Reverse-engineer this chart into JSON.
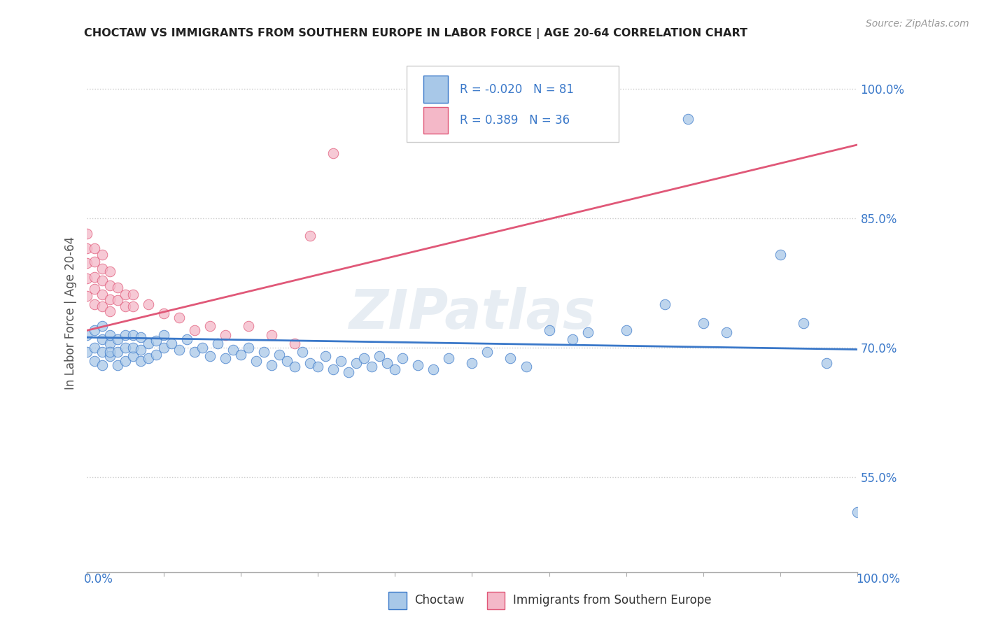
{
  "title": "CHOCTAW VS IMMIGRANTS FROM SOUTHERN EUROPE IN LABOR FORCE | AGE 20-64 CORRELATION CHART",
  "source": "Source: ZipAtlas.com",
  "ylabel": "In Labor Force | Age 20-64",
  "xlim": [
    0.0,
    1.0
  ],
  "ylim": [
    0.44,
    1.04
  ],
  "yticks": [
    0.55,
    0.7,
    0.85,
    1.0
  ],
  "ytick_labels": [
    "55.0%",
    "70.0%",
    "85.0%",
    "100.0%"
  ],
  "r1": -0.02,
  "n1": 81,
  "r2": 0.389,
  "n2": 36,
  "legend1_label": "Choctaw",
  "legend2_label": "Immigrants from Southern Europe",
  "color1": "#a8c8e8",
  "color2": "#f4b8c8",
  "line1_color": "#3a78c9",
  "line2_color": "#e05878",
  "watermark": "ZIPatlas",
  "blue_scatter_x": [
    0.0,
    0.0,
    0.01,
    0.01,
    0.01,
    0.02,
    0.02,
    0.02,
    0.02,
    0.03,
    0.03,
    0.03,
    0.03,
    0.04,
    0.04,
    0.04,
    0.05,
    0.05,
    0.05,
    0.06,
    0.06,
    0.06,
    0.07,
    0.07,
    0.07,
    0.08,
    0.08,
    0.09,
    0.09,
    0.1,
    0.1,
    0.11,
    0.12,
    0.13,
    0.14,
    0.15,
    0.16,
    0.17,
    0.18,
    0.19,
    0.2,
    0.21,
    0.22,
    0.23,
    0.24,
    0.25,
    0.26,
    0.27,
    0.28,
    0.29,
    0.3,
    0.31,
    0.32,
    0.33,
    0.34,
    0.35,
    0.36,
    0.37,
    0.38,
    0.39,
    0.4,
    0.41,
    0.43,
    0.45,
    0.47,
    0.5,
    0.52,
    0.55,
    0.57,
    0.6,
    0.63,
    0.65,
    0.7,
    0.75,
    0.78,
    0.8,
    0.83,
    0.9,
    0.93,
    0.96,
    1.0
  ],
  "blue_scatter_y": [
    0.695,
    0.715,
    0.685,
    0.7,
    0.72,
    0.68,
    0.695,
    0.71,
    0.725,
    0.69,
    0.705,
    0.695,
    0.715,
    0.68,
    0.695,
    0.71,
    0.685,
    0.7,
    0.715,
    0.69,
    0.7,
    0.715,
    0.685,
    0.698,
    0.712,
    0.688,
    0.705,
    0.692,
    0.708,
    0.7,
    0.715,
    0.705,
    0.698,
    0.71,
    0.695,
    0.7,
    0.69,
    0.705,
    0.688,
    0.698,
    0.692,
    0.7,
    0.685,
    0.695,
    0.68,
    0.692,
    0.685,
    0.678,
    0.695,
    0.682,
    0.678,
    0.69,
    0.675,
    0.685,
    0.672,
    0.682,
    0.688,
    0.678,
    0.69,
    0.682,
    0.675,
    0.688,
    0.68,
    0.675,
    0.688,
    0.682,
    0.695,
    0.688,
    0.678,
    0.72,
    0.71,
    0.718,
    0.72,
    0.75,
    0.965,
    0.728,
    0.718,
    0.808,
    0.728,
    0.682,
    0.51
  ],
  "pink_scatter_x": [
    0.0,
    0.0,
    0.0,
    0.0,
    0.0,
    0.01,
    0.01,
    0.01,
    0.01,
    0.01,
    0.02,
    0.02,
    0.02,
    0.02,
    0.02,
    0.03,
    0.03,
    0.03,
    0.03,
    0.04,
    0.04,
    0.05,
    0.05,
    0.06,
    0.06,
    0.08,
    0.1,
    0.12,
    0.14,
    0.16,
    0.18,
    0.21,
    0.24,
    0.27,
    0.29,
    0.32
  ],
  "pink_scatter_y": [
    0.76,
    0.78,
    0.798,
    0.815,
    0.832,
    0.75,
    0.768,
    0.782,
    0.8,
    0.815,
    0.748,
    0.762,
    0.778,
    0.792,
    0.808,
    0.742,
    0.756,
    0.772,
    0.788,
    0.755,
    0.77,
    0.748,
    0.762,
    0.748,
    0.762,
    0.75,
    0.74,
    0.735,
    0.72,
    0.725,
    0.715,
    0.725,
    0.715,
    0.705,
    0.83,
    0.925
  ],
  "line1_x": [
    0.0,
    1.0
  ],
  "line1_y": [
    0.712,
    0.698
  ],
  "line2_x": [
    0.0,
    1.0
  ],
  "line2_y": [
    0.72,
    0.935
  ]
}
